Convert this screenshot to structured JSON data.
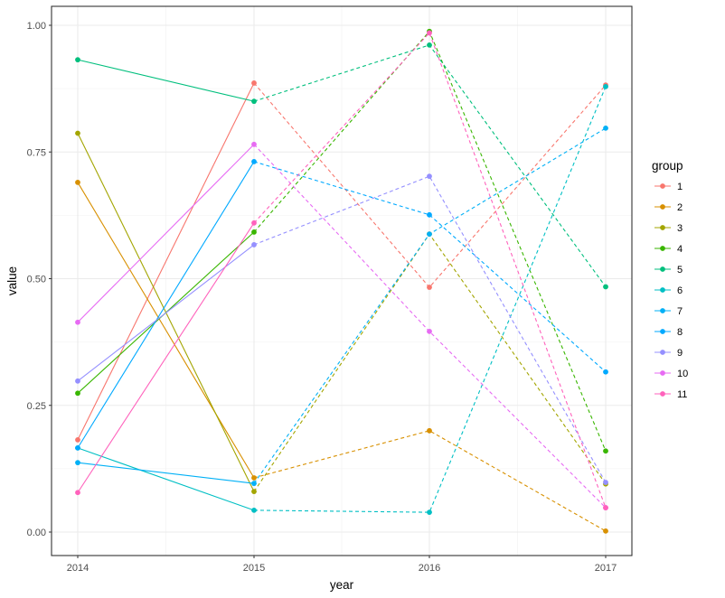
{
  "chart_data": {
    "type": "line",
    "title": "",
    "xlabel": "year",
    "ylabel": "value",
    "x": [
      2014,
      2015,
      2016,
      2017
    ],
    "x_tick_labels": [
      "2014",
      "2015",
      "2016",
      "2017"
    ],
    "ylim": [
      -0.045,
      1.055
    ],
    "y_ticks": [
      0.0,
      0.25,
      0.5,
      0.75,
      1.0
    ],
    "y_tick_labels": [
      "0.00",
      "0.25",
      "0.50",
      "0.75",
      "1.00"
    ],
    "grid": true,
    "legend": {
      "title": "group",
      "position": "right"
    },
    "line_style_note": "solid segment 2014-2015, dashed after 2015",
    "series": [
      {
        "name": "1",
        "color": "#F8766D",
        "values": [
          0.182,
          0.886,
          0.483,
          0.882
        ]
      },
      {
        "name": "2",
        "color": "#D89000",
        "values": [
          0.69,
          0.107,
          0.2,
          0.002
        ]
      },
      {
        "name": "3",
        "color": "#A3A500",
        "values": [
          0.787,
          0.08,
          0.588,
          0.095
        ]
      },
      {
        "name": "4",
        "color": "#39B600",
        "values": [
          0.274,
          0.592,
          0.988,
          0.16
        ]
      },
      {
        "name": "5",
        "color": "#00BF7D",
        "values": [
          0.932,
          0.85,
          0.961,
          0.484
        ]
      },
      {
        "name": "6",
        "color": "#00BFC4",
        "values": [
          0.166,
          0.043,
          0.039,
          0.879
        ]
      },
      {
        "name": "7",
        "color": "#00B0F6",
        "values": [
          0.137,
          0.096,
          0.588,
          0.797
        ]
      },
      {
        "name": "8",
        "color": "#00A9FF",
        "values": [
          0.166,
          0.731,
          0.626,
          0.316
        ]
      },
      {
        "name": "9",
        "color": "#9590FF",
        "values": [
          0.298,
          0.567,
          0.702,
          0.098
        ]
      },
      {
        "name": "10",
        "color": "#E76BF3",
        "values": [
          0.414,
          0.765,
          0.396,
          0.048
        ]
      },
      {
        "name": "11",
        "color": "#FF62BC",
        "values": [
          0.078,
          0.61,
          0.985,
          0.048
        ]
      }
    ]
  }
}
